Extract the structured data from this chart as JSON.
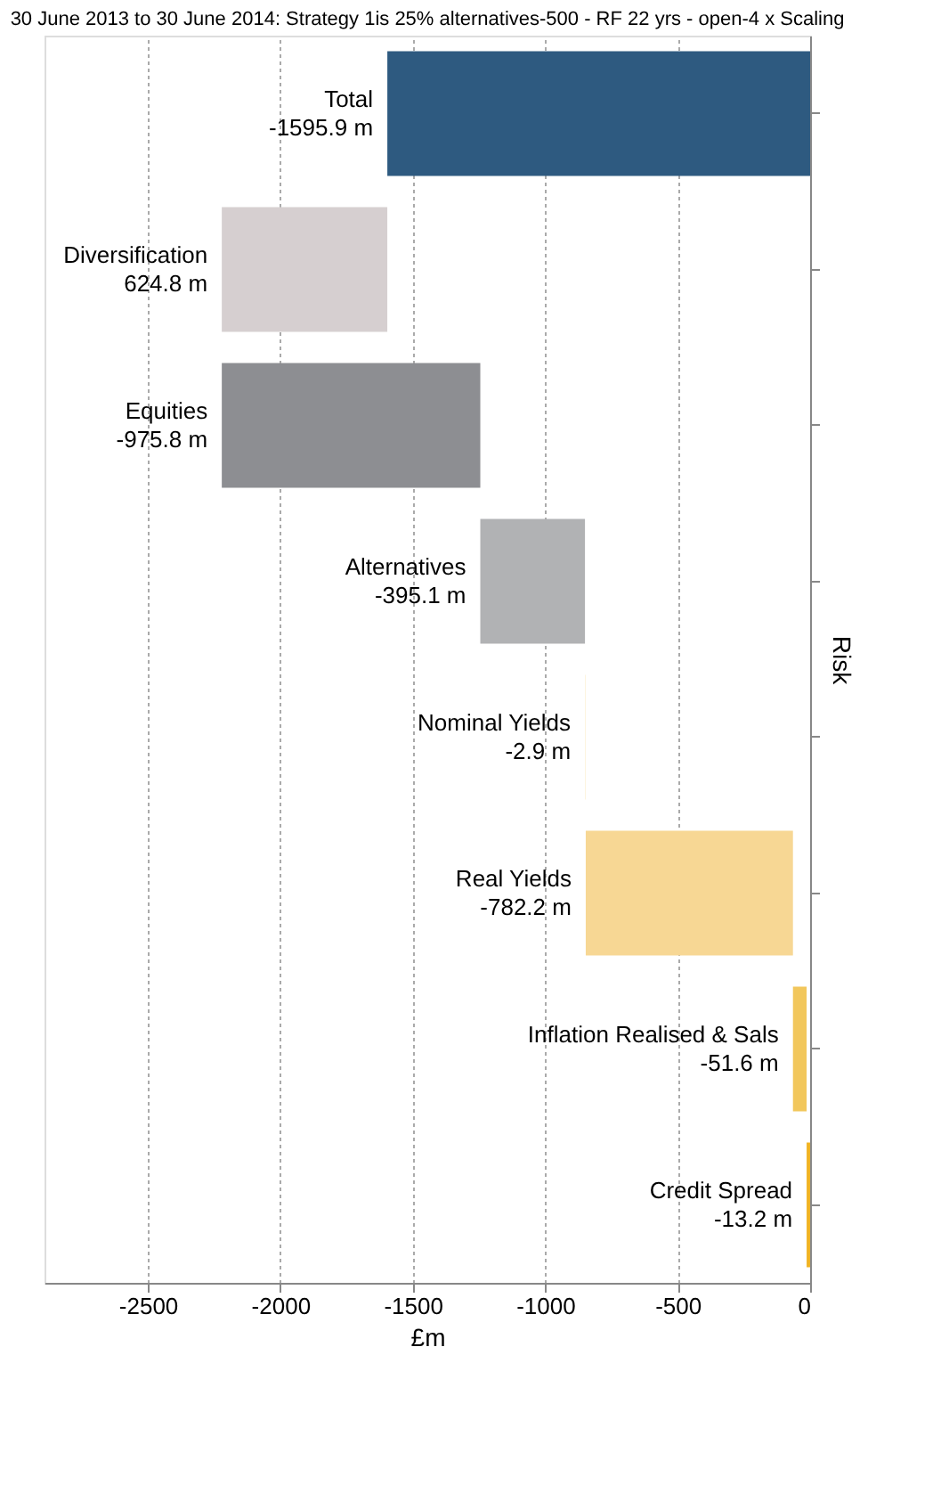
{
  "chart_data": {
    "type": "bar",
    "orientation": "horizontal",
    "title": "30 June 2013 to 30 June 2014: Strategy 1is 25% alternatives-500 - RF 22 yrs - open-4 x Scaling",
    "xlabel": "£m",
    "ylabel": "Risk",
    "categories": [
      "Total",
      "Diversification",
      "Equities",
      "Alternatives",
      "Nominal Yields",
      "Real Yields",
      "Inflation Realised & Sals",
      "Credit Spread"
    ],
    "values": [
      -1595.9,
      624.8,
      -975.8,
      -395.1,
      -2.9,
      -782.2,
      -51.6,
      -13.2
    ],
    "base": [
      0,
      -2220.8,
      -1245.0,
      -849.9,
      -847.0,
      -64.8,
      -13.2,
      0
    ],
    "colors": [
      "#2e5a80",
      "#d6cfd0",
      "#8d8e92",
      "#b1b2b4",
      "#fdf3dc",
      "#f7d794",
      "#f2c75c",
      "#f0b323"
    ],
    "value_labels": [
      "-1595.9 m",
      "624.8 m",
      "-975.8 m",
      "-395.1 m",
      "-2.9 m",
      "-782.2 m",
      "-51.6 m",
      "-13.2 m"
    ],
    "xlim": [
      -2890,
      0
    ],
    "xticks": [
      -2500,
      -2000,
      -1500,
      -1000,
      -500,
      0
    ],
    "grid": "x",
    "tick_labels": "x"
  }
}
